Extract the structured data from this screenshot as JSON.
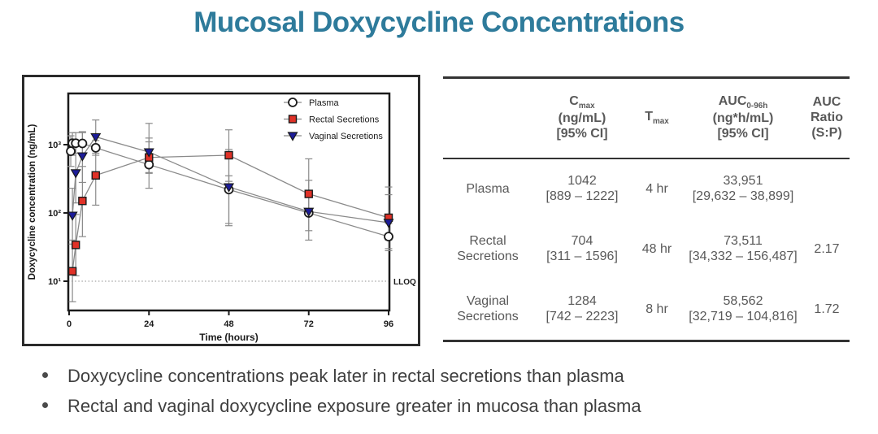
{
  "title": "Mucosal Doxycycline Concentrations",
  "chart": {
    "y_tick_labels": [
      "10¹",
      "10²",
      "10³"
    ],
    "lloq_label": "LLOQ"
  },
  "chart_data": {
    "type": "line",
    "title": "",
    "xlabel": "Time (hours)",
    "ylabel": "Doxycycline concentration (ng/mL)",
    "x_ticks": [
      0,
      24,
      48,
      72,
      96
    ],
    "y_scale": "log10",
    "ylim": [
      4,
      6000
    ],
    "lloq": 10,
    "legend_position": "top-right-inside",
    "grid": false,
    "series": [
      {
        "name": "Plasma",
        "marker": "circle-open",
        "color": "#ffffff",
        "edge": "#1a1a1a",
        "x": [
          0.5,
          1,
          2,
          4,
          8,
          24,
          48,
          72,
          96
        ],
        "y": [
          800,
          1050,
          1050,
          1042,
          900,
          510,
          220,
          100,
          45
        ],
        "y_lo": [
          480,
          700,
          750,
          700,
          700,
          230,
          70,
          55,
          30
        ],
        "y_hi": [
          1350,
          1500,
          1500,
          1550,
          1150,
          1250,
          350,
          180,
          70
        ]
      },
      {
        "name": "Rectal Secretions",
        "marker": "square",
        "color": "#e03127",
        "edge": "#1a1a1a",
        "x": [
          1,
          2,
          4,
          8,
          24,
          48,
          72,
          96
        ],
        "y": [
          14,
          34,
          150,
          355,
          650,
          700,
          190,
          85
        ],
        "y_lo": [
          5,
          12,
          45,
          130,
          390,
          290,
          115,
          40
        ],
        "y_hi": [
          40,
          95,
          480,
          950,
          1100,
          1650,
          300,
          185
        ]
      },
      {
        "name": "Vaginal Secretions",
        "marker": "triangle-down",
        "color": "#1c1c99",
        "edge": "#1a1a1a",
        "x": [
          1,
          2,
          4,
          8,
          24,
          48,
          72,
          96
        ],
        "y": [
          92,
          385,
          680,
          1300,
          780,
          240,
          105,
          72
        ],
        "y_lo": [
          35,
          140,
          280,
          750,
          380,
          65,
          40,
          28
        ],
        "y_hi": [
          230,
          950,
          1500,
          2300,
          2050,
          850,
          620,
          240
        ]
      }
    ]
  },
  "table": {
    "headers": {
      "col1": "",
      "cmax": {
        "main": "C",
        "sub": "max",
        "line2": "(ng/mL)",
        "line3": "[95% CI]"
      },
      "tmax": {
        "main": "T",
        "sub": "max"
      },
      "auc": {
        "main": "AUC",
        "sub": "0-96h",
        "line2": "(ng*h/mL)",
        "line3": "[95% CI]"
      },
      "ratio": {
        "line1": "AUC",
        "line2": "Ratio",
        "line3": "(S:P)"
      }
    },
    "rows": [
      {
        "label": "Plasma",
        "cmax": "1042",
        "cmax_ci": "[889 – 1222]",
        "tmax": "4 hr",
        "auc": "33,951",
        "auc_ci": "[29,632 – 38,899]",
        "ratio": ""
      },
      {
        "label": "Rectal Secretions",
        "cmax": "704",
        "cmax_ci": "[311 – 1596]",
        "tmax": "48 hr",
        "auc": "73,511",
        "auc_ci": "[34,332 – 156,487]",
        "ratio": "2.17"
      },
      {
        "label": "Vaginal Secretions",
        "cmax": "1284",
        "cmax_ci": "[742 – 2223]",
        "tmax": "8 hr",
        "auc": "58,562",
        "auc_ci": "[32,719 – 104,816]",
        "ratio": "1.72"
      }
    ]
  },
  "bullets": [
    "Doxycycline concentrations peak later in rectal secretions than plasma",
    "Rectal and vaginal doxycycline exposure greater in mucosa than plasma"
  ]
}
